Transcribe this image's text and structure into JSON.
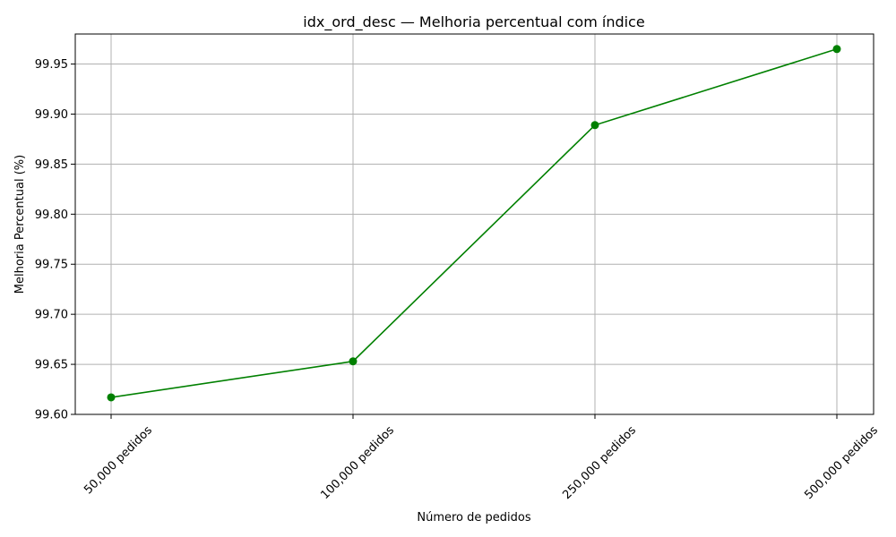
{
  "chart_data": {
    "type": "line",
    "title": "idx_ord_desc — Melhoria percentual com índice",
    "xlabel": "Número de pedidos",
    "ylabel": "Melhoria Percentual (%)",
    "categories": [
      "50,000 pedidos",
      "100,000 pedidos",
      "250,000 pedidos",
      "500,000 pedidos"
    ],
    "series": [
      {
        "values": [
          99.617,
          99.653,
          99.889,
          99.965
        ],
        "color": "#008000",
        "marker": "circle"
      }
    ],
    "ylim": [
      99.6,
      99.98
    ],
    "yticks": [
      "99.60",
      "99.65",
      "99.70",
      "99.75",
      "99.80",
      "99.85",
      "99.90",
      "99.95"
    ],
    "grid": true,
    "legend": "none"
  }
}
